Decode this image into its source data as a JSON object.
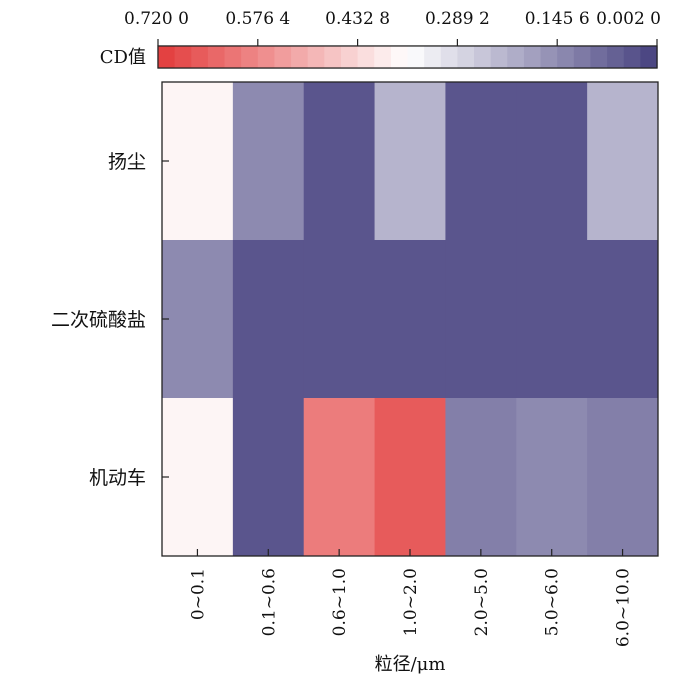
{
  "chart_data": {
    "type": "heatmap",
    "title": "",
    "xlabel": "粒径/μm",
    "ylabel": "",
    "colorbar_label": "CD值",
    "colorbar_ticks": [
      "0.720 0",
      "0.576 4",
      "0.432 8",
      "0.289 2",
      "0.145 6",
      "0.002 0"
    ],
    "colorbar_range": [
      0.72,
      0.002
    ],
    "colorbar_scale": {
      "high_color": "#e23a3a",
      "mid_color": "#ffffff",
      "low_color": "#46417f"
    },
    "x_categories": [
      "0~0.1",
      "0.1~0.6",
      "0.6~1.0",
      "1.0~2.0",
      "2.0~5.0",
      "5.0~6.0",
      "6.0~10.0"
    ],
    "y_categories": [
      "扬尘",
      "二次硫酸盐",
      "机动车"
    ],
    "values": [
      [
        0.38,
        0.14,
        0.04,
        0.22,
        0.04,
        0.04,
        0.22
      ],
      [
        0.14,
        0.04,
        0.04,
        0.04,
        0.04,
        0.04,
        0.04
      ],
      [
        0.38,
        0.04,
        0.6,
        0.66,
        0.12,
        0.14,
        0.12
      ]
    ]
  }
}
